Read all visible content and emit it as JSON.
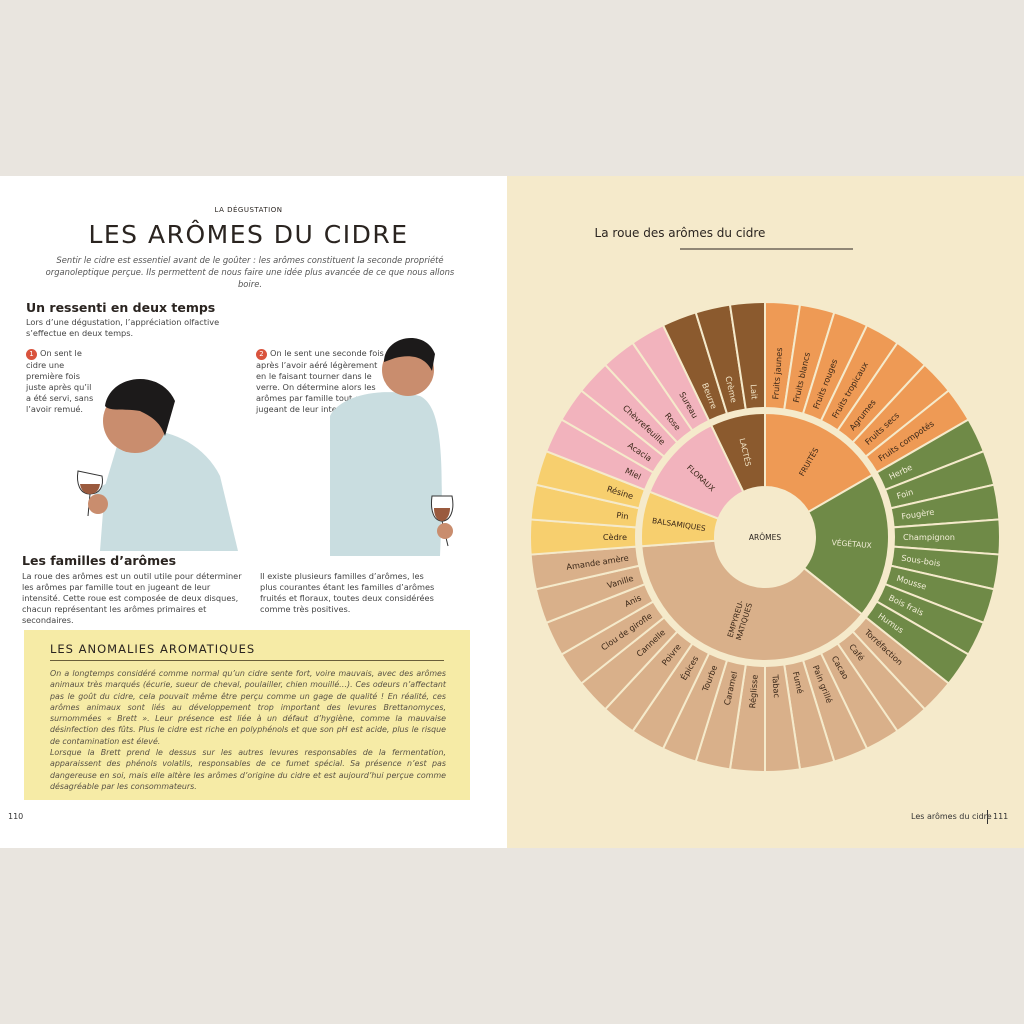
{
  "header": {
    "kicker": "LA DÉGUSTATION",
    "title": "LES ARÔMES DU CIDRE",
    "intro": "Sentir le cidre est essentiel avant de le goûter : les arômes constituent la seconde propriété organoleptique perçue. Ils permettent de nous faire une idée plus avancée de ce que nous allons boire."
  },
  "section1": {
    "heading": "Un ressenti en deux temps",
    "text": "Lors d’une dégustation, l’appréciation olfactive s’effectue en deux temps.",
    "steps": [
      {
        "number": "1",
        "text": "On sent le cidre une première fois juste après qu’il a été servi, sans l’avoir remué."
      },
      {
        "number": "2",
        "text": "On le sent une seconde fois après l’avoir aéré légèrement en le faisant tourner dans le verre. On détermine alors les arômes par famille tout en jugeant de leur intensité."
      }
    ]
  },
  "section2": {
    "heading": "Les familles d’arômes",
    "columns": [
      "La roue des arômes est un outil utile pour déterminer les arômes par famille tout en jugeant de leur intensité. Cette roue est composée de deux disques, chacun représentant les arômes primaires et secondaires.",
      "Il existe plusieurs familles d’arômes, les plus courantes étant les familles d’arômes fruités et floraux, toutes deux considérées comme très positives."
    ]
  },
  "box": {
    "title": "LES ANOMALIES AROMATIQUES",
    "paragraphs": [
      "On a longtemps considéré comme normal qu’un cidre sente fort, voire mauvais, avec des arômes animaux très marqués (écurie, sueur de cheval, poulailler, chien mouillé…). Ces odeurs n’affectant pas le goût du cidre, cela pouvait même être perçu comme un gage de qualité ! En réalité, ces arômes animaux sont liés au développement trop important des levures Brettanomyces, surnommées « Brett ». Leur présence est liée à un défaut d’hygiène, comme la mauvaise désinfection des fûts. Plus le cidre est riche en polyphénols et que son pH est acide, plus le risque de contamination est élevé.",
      "Lorsque la Brett prend le dessus sur les autres levures responsables de la fermentation, apparaissent des phénols volatils, responsables de ce fumet spécial. Sa présence n’est pas dangereuse en soi, mais elle altère les arômes d’origine du cidre et est aujourd’hui perçue comme désagréable par les consommateurs."
    ]
  },
  "footer": {
    "left_page": "110",
    "running_title": "Les arômes du cidre",
    "right_page": "111"
  },
  "wheel": {
    "title": "La roue des arômes du cidre",
    "center": "ARÔMES",
    "families": [
      {
        "label": [
          "LACTÉS"
        ],
        "color": "#8b5a2e",
        "text_color": "#f3e6c8",
        "items": [
          "Beurre",
          "Crème",
          "Lait"
        ]
      },
      {
        "label": [
          "FRUITÉS"
        ],
        "color": "#ee9a55",
        "text_color": "#3a2718",
        "items": [
          "Fruits jaunes",
          "Fruits blancs",
          "Fruits rouges",
          "Fruits tropicaux",
          "Agrumes",
          "Fruits secs",
          "Fruits compotés"
        ]
      },
      {
        "label": [
          "VÉGÉTAUX"
        ],
        "color": "#6f8a47",
        "text_color": "#f3eed8",
        "items": [
          "Herbe",
          "Foin",
          "Fougère",
          "Champignon",
          "Sous-bois",
          "Mousse",
          "Bois frais",
          "Humus"
        ]
      },
      {
        "label": [
          "EMPYREU-",
          "MATIQUES"
        ],
        "color": "#d9b08a",
        "text_color": "#3a2718",
        "items": [
          "Torréfaction",
          "Café",
          "Cacao",
          "Pain grillé",
          "Fumé",
          "Tabac",
          "Réglisse",
          "Caramel",
          "Tourbe",
          "Épices",
          "Poivre",
          "Cannelle",
          "Clou de girofle",
          "Anis",
          "Vanille",
          "Amande amère"
        ]
      },
      {
        "label": [
          "BALSAMIQUES"
        ],
        "color": "#f7cf6e",
        "text_color": "#3a2718",
        "items": [
          "Cèdre",
          "Pin",
          "Résine"
        ]
      },
      {
        "label": [
          "FLORAUX"
        ],
        "color": "#f2b3bd",
        "text_color": "#3a2718",
        "items": [
          "Miel",
          "Acacia",
          "Chèvrefeuille",
          "Rose",
          "Sureau"
        ]
      }
    ]
  }
}
